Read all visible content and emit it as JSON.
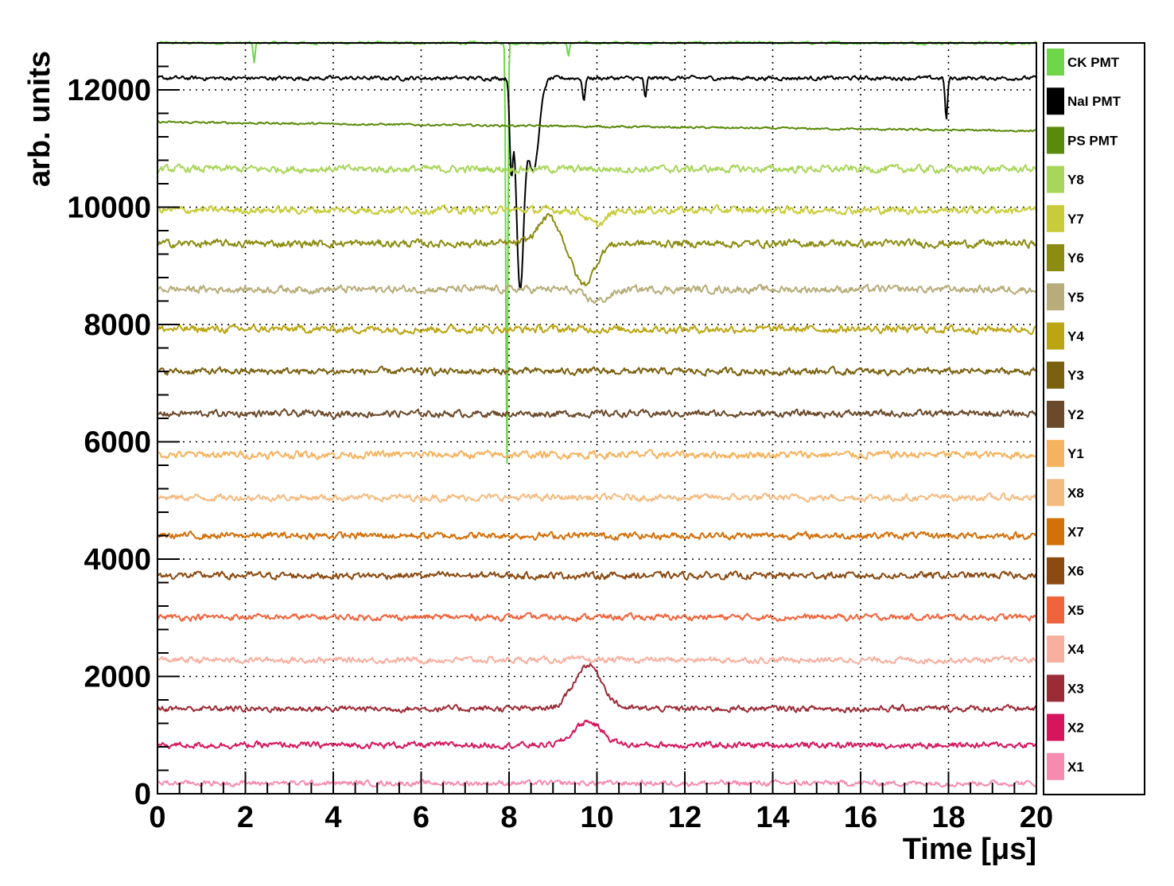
{
  "chart_data": {
    "type": "line",
    "xlabel": "Time [μs]",
    "ylabel": "arb. units",
    "xlim": [
      0,
      20
    ],
    "ylim": [
      0,
      12800
    ],
    "grid": true,
    "legend_position": "right",
    "x_ticks": [
      0,
      2,
      4,
      6,
      8,
      10,
      12,
      14,
      16,
      18,
      20
    ],
    "x_tick_labels": [
      "0",
      "2",
      "4",
      "6",
      "8",
      "10",
      "12",
      "14",
      "16",
      "18",
      "20"
    ],
    "y_ticks": [
      0,
      2000,
      4000,
      6000,
      8000,
      10000,
      12000
    ],
    "y_tick_labels": [
      "0",
      "2000",
      "4000",
      "6000",
      "8000",
      "10000",
      "12000"
    ],
    "series": [
      {
        "name": "CK PMT",
        "color": "#6fd64a",
        "baseline": 12800,
        "noise": 40,
        "events": [
          [
            7.95,
            7400,
            0.03
          ],
          [
            2.2,
            350,
            0.03
          ],
          [
            9.35,
            250,
            0.03
          ]
        ]
      },
      {
        "name": "NaI PMT",
        "color": "#000000",
        "baseline": 12200,
        "noise": 60,
        "events": [
          [
            8.05,
            1500,
            0.05
          ],
          [
            8.25,
            3500,
            0.12
          ],
          [
            8.55,
            1600,
            0.18
          ],
          [
            9.7,
            400,
            0.04
          ],
          [
            11.1,
            350,
            0.04
          ],
          [
            17.95,
            700,
            0.04
          ]
        ]
      },
      {
        "name": "PS PMT",
        "color": "#5a8a0a",
        "baseline": 11450,
        "end": 11300,
        "noise": 30,
        "events": []
      },
      {
        "name": "Y8",
        "color": "#a8d65a",
        "baseline": 10650,
        "noise": 110,
        "events": []
      },
      {
        "name": "Y7",
        "color": "#c9cc3a",
        "baseline": 9950,
        "noise": 110,
        "events": [
          [
            10.0,
            250,
            0.3
          ]
        ]
      },
      {
        "name": "Y6",
        "color": "#8c8c12",
        "baseline": 9380,
        "noise": 110,
        "events": [
          [
            8.9,
            -450,
            0.35
          ],
          [
            9.7,
            700,
            0.35
          ]
        ]
      },
      {
        "name": "Y5",
        "color": "#b8ad7a",
        "baseline": 8600,
        "noise": 110,
        "events": [
          [
            10.0,
            200,
            0.4
          ]
        ]
      },
      {
        "name": "Y4",
        "color": "#bba512",
        "baseline": 7920,
        "noise": 110,
        "events": []
      },
      {
        "name": "Y3",
        "color": "#7a6110",
        "baseline": 7200,
        "noise": 100,
        "events": []
      },
      {
        "name": "Y2",
        "color": "#6b4a2b",
        "baseline": 6480,
        "noise": 100,
        "events": []
      },
      {
        "name": "Y1",
        "color": "#f5b35f",
        "baseline": 5780,
        "noise": 110,
        "events": []
      },
      {
        "name": "X8",
        "color": "#f4bb80",
        "baseline": 5050,
        "noise": 100,
        "events": []
      },
      {
        "name": "X7",
        "color": "#d2700a",
        "baseline": 4400,
        "noise": 100,
        "events": []
      },
      {
        "name": "X6",
        "color": "#8a4a12",
        "baseline": 3720,
        "noise": 100,
        "events": []
      },
      {
        "name": "X5",
        "color": "#f0643c",
        "baseline": 3010,
        "noise": 90,
        "events": []
      },
      {
        "name": "X4",
        "color": "#f7b0a0",
        "baseline": 2280,
        "noise": 90,
        "events": []
      },
      {
        "name": "X3",
        "color": "#9b2c36",
        "baseline": 1450,
        "noise": 90,
        "events": [
          [
            9.8,
            -750,
            0.45
          ]
        ]
      },
      {
        "name": "X2",
        "color": "#d6155e",
        "baseline": 830,
        "noise": 90,
        "events": [
          [
            9.8,
            -400,
            0.45
          ]
        ]
      },
      {
        "name": "X1",
        "color": "#f58cb0",
        "baseline": 180,
        "noise": 80,
        "events": []
      }
    ]
  }
}
